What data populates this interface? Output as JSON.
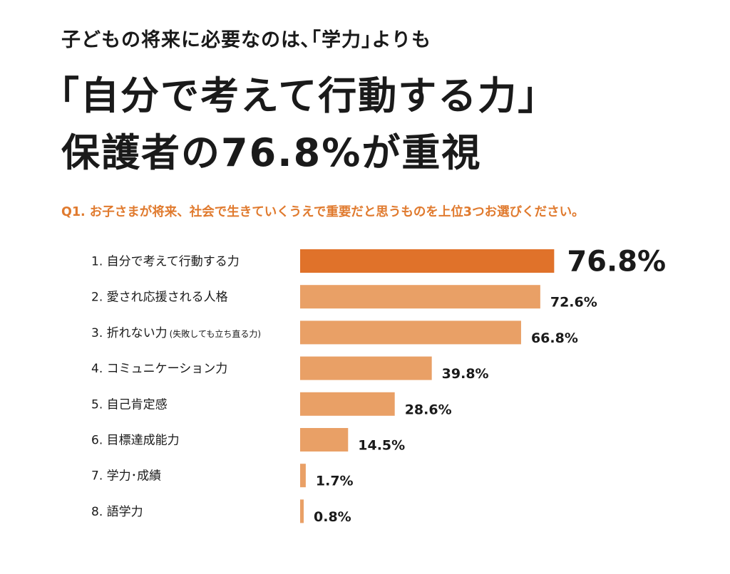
{
  "headline": {
    "line1": "子どもの将来に必要なのは､｢学力｣よりも",
    "line2": "｢自分で考えて行動する力｣",
    "line3": "保護者の76.8%が重視"
  },
  "question": "Q1. お子さまが将来、社会で生きていくうえで重要だと思うものを上位3つお選びください。",
  "colors": {
    "accent": "#e07a2e",
    "highlight_bar": "#e0722a",
    "bar": "#e9a066",
    "text": "#1a1a1a"
  },
  "chart_data": {
    "type": "bar",
    "orientation": "horizontal",
    "categories": [
      "1. 自分で考えて行動する力",
      "2. 愛され応援される人格",
      "3. 折れない力",
      "4. コミュニケーション力",
      "5. 自己肯定感",
      "6. 目標達成能力",
      "7. 学力･成績",
      "8. 語学力"
    ],
    "category_notes": [
      "",
      "",
      "(失敗しても立ち直る力)",
      "",
      "",
      "",
      "",
      ""
    ],
    "values": [
      76.8,
      72.6,
      66.8,
      39.8,
      28.6,
      14.5,
      1.7,
      0.8
    ],
    "value_labels": [
      "76.8%",
      "72.6%",
      "66.8%",
      "39.8%",
      "28.6%",
      "14.5%",
      "1.7%",
      "0.8%"
    ],
    "highlight_index": 0,
    "xlim": [
      0,
      100
    ],
    "grid": false,
    "legend": "none"
  }
}
